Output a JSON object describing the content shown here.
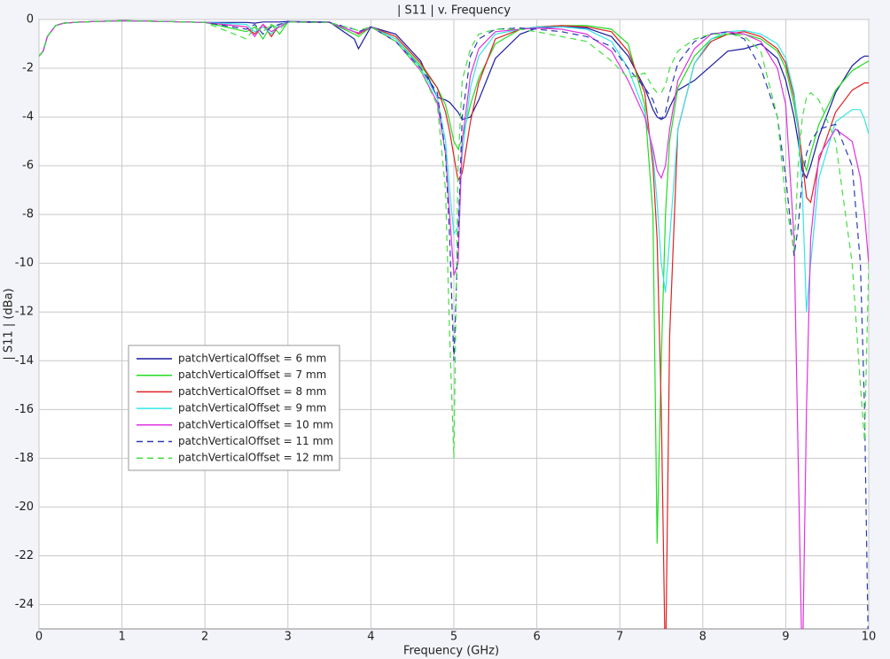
{
  "chart_data": {
    "type": "line",
    "title": "| S11 | v. Frequency",
    "xlabel": "Frequency (GHz)",
    "ylabel": "| S11 | (dBa)",
    "xlim": [
      0,
      10
    ],
    "ylim": [
      -25,
      0
    ],
    "xticks": [
      0,
      1,
      2,
      3,
      4,
      5,
      6,
      7,
      8,
      9,
      10
    ],
    "yticks": [
      0,
      -2,
      -4,
      -6,
      -8,
      -10,
      -12,
      -14,
      -16,
      -18,
      -20,
      -22,
      -24
    ],
    "grid": true,
    "x": [
      0,
      0.05,
      0.1,
      0.2,
      0.3,
      0.5,
      1,
      1.5,
      2,
      2.5,
      2.6,
      2.7,
      2.8,
      2.9,
      3,
      3.5,
      3.8,
      3.85,
      4,
      4.3,
      4.6,
      4.8,
      4.9,
      4.95,
      5,
      5.05,
      5.1,
      5.2,
      5.3,
      5.5,
      5.8,
      6,
      6.3,
      6.6,
      6.9,
      7.1,
      7.3,
      7.4,
      7.45,
      7.5,
      7.55,
      7.6,
      7.7,
      7.9,
      8.1,
      8.3,
      8.5,
      8.7,
      8.9,
      9.0,
      9.1,
      9.15,
      9.2,
      9.25,
      9.3,
      9.4,
      9.6,
      9.8,
      9.9,
      9.95,
      10
    ],
    "series": [
      {
        "name": "patchVerticalOffset = 6 mm",
        "color": "#1a1aa0",
        "linestyle": "solid",
        "values": [
          -1.5,
          -1.3,
          -0.7,
          -0.25,
          -0.15,
          -0.1,
          -0.05,
          -0.08,
          -0.12,
          -0.12,
          -0.15,
          -0.1,
          -0.1,
          -0.1,
          -0.08,
          -0.1,
          -0.8,
          -1.2,
          -0.3,
          -0.6,
          -1.7,
          -3.2,
          -3.3,
          -3.4,
          -3.6,
          -3.8,
          -4.1,
          -4.0,
          -3.3,
          -1.6,
          -0.6,
          -0.35,
          -0.3,
          -0.35,
          -0.7,
          -1.5,
          -2.8,
          -3.7,
          -4.0,
          -4.1,
          -4.0,
          -3.6,
          -2.9,
          -2.5,
          -1.9,
          -1.3,
          -1.2,
          -1.0,
          -1.6,
          -2.5,
          -4.0,
          -5.0,
          -6.2,
          -6.5,
          -6.0,
          -4.8,
          -3.0,
          -1.9,
          -1.6,
          -1.5,
          -1.5
        ]
      },
      {
        "name": "patchVerticalOffset = 7 mm",
        "color": "#22dd22",
        "linestyle": "solid",
        "values": [
          -1.5,
          -1.3,
          -0.7,
          -0.25,
          -0.15,
          -0.1,
          -0.05,
          -0.08,
          -0.12,
          -0.5,
          -0.3,
          -0.8,
          -0.2,
          -0.6,
          -0.1,
          -0.12,
          -0.6,
          -0.7,
          -0.3,
          -0.8,
          -1.9,
          -2.8,
          -3.5,
          -4.2,
          -5.0,
          -5.3,
          -4.9,
          -3.5,
          -2.4,
          -1.0,
          -0.4,
          -0.3,
          -0.25,
          -0.25,
          -0.4,
          -1.0,
          -3.5,
          -8,
          -21.5,
          -14,
          -8,
          -5,
          -2.8,
          -1.5,
          -0.8,
          -0.6,
          -0.6,
          -0.8,
          -1.3,
          -2.0,
          -3.5,
          -4.5,
          -5.7,
          -6.2,
          -5.5,
          -4.3,
          -2.9,
          -2.1,
          -1.9,
          -1.8,
          -1.7
        ]
      },
      {
        "name": "patchVerticalOffset = 8 mm",
        "color": "#dd2222",
        "linestyle": "solid",
        "values": [
          -1.5,
          -1.3,
          -0.7,
          -0.25,
          -0.15,
          -0.1,
          -0.05,
          -0.08,
          -0.12,
          -0.3,
          -0.6,
          -0.2,
          -0.7,
          -0.2,
          -0.1,
          -0.12,
          -0.5,
          -0.6,
          -0.3,
          -0.7,
          -1.8,
          -2.8,
          -3.8,
          -4.6,
          -5.6,
          -6.6,
          -6.3,
          -4.2,
          -2.6,
          -0.8,
          -0.4,
          -0.3,
          -0.25,
          -0.3,
          -0.5,
          -1.3,
          -3.0,
          -6,
          -9,
          -16,
          -27,
          -13,
          -4.5,
          -1.8,
          -0.9,
          -0.6,
          -0.5,
          -0.7,
          -1.2,
          -1.8,
          -3.2,
          -4.3,
          -5.8,
          -7.3,
          -7.5,
          -5.8,
          -3.8,
          -2.9,
          -2.7,
          -2.6,
          -2.6
        ]
      },
      {
        "name": "patchVerticalOffset = 9 mm",
        "color": "#33e6e6",
        "linestyle": "solid",
        "values": [
          -1.5,
          -1.3,
          -0.7,
          -0.25,
          -0.15,
          -0.1,
          -0.05,
          -0.08,
          -0.12,
          -0.2,
          -0.5,
          -0.3,
          -0.6,
          -0.2,
          -0.1,
          -0.12,
          -0.5,
          -0.55,
          -0.3,
          -0.8,
          -2.0,
          -3.2,
          -5,
          -7,
          -8.8,
          -8.5,
          -5.5,
          -2.8,
          -1.5,
          -0.6,
          -0.4,
          -0.3,
          -0.3,
          -0.4,
          -0.9,
          -2.0,
          -3.8,
          -5.5,
          -7.5,
          -10,
          -11.2,
          -9,
          -4.5,
          -1.8,
          -0.8,
          -0.5,
          -0.45,
          -0.6,
          -1.0,
          -1.6,
          -3.0,
          -4.5,
          -7,
          -12,
          -10,
          -6.5,
          -4.2,
          -3.7,
          -3.7,
          -4.1,
          -4.7
        ]
      },
      {
        "name": "patchVerticalOffset = 10 mm",
        "color": "#e033e0",
        "linestyle": "solid",
        "values": [
          -1.5,
          -1.3,
          -0.7,
          -0.25,
          -0.15,
          -0.1,
          -0.05,
          -0.08,
          -0.12,
          -0.3,
          -0.7,
          -0.2,
          -0.5,
          -0.3,
          -0.1,
          -0.12,
          -0.5,
          -0.55,
          -0.3,
          -0.9,
          -2.1,
          -3.4,
          -5.5,
          -8,
          -10.5,
          -10,
          -5,
          -2.3,
          -1.2,
          -0.5,
          -0.4,
          -0.35,
          -0.4,
          -0.6,
          -1.3,
          -2.5,
          -4.0,
          -5.3,
          -6.2,
          -6.5,
          -6.0,
          -4.5,
          -2.5,
          -1.2,
          -0.6,
          -0.5,
          -0.6,
          -0.9,
          -2.0,
          -3.5,
          -9,
          -18,
          -27,
          -16,
          -9,
          -5.6,
          -4.5,
          -5,
          -6.5,
          -8,
          -10
        ]
      },
      {
        "name": "patchVerticalOffset = 11 mm",
        "color": "#2a3ab0",
        "linestyle": "dashed",
        "values": [
          -1.5,
          -1.3,
          -0.7,
          -0.25,
          -0.15,
          -0.1,
          -0.05,
          -0.08,
          -0.12,
          -0.4,
          -0.2,
          -0.6,
          -0.3,
          -0.2,
          -0.1,
          -0.12,
          -0.4,
          -0.5,
          -0.3,
          -0.9,
          -2.0,
          -3,
          -5.5,
          -9,
          -14,
          -9,
          -4,
          -1.5,
          -0.8,
          -0.4,
          -0.35,
          -0.4,
          -0.5,
          -0.7,
          -1.1,
          -2.0,
          -2.8,
          -3.3,
          -3.8,
          -4.1,
          -3.8,
          -3.0,
          -1.8,
          -0.9,
          -0.6,
          -0.5,
          -0.8,
          -2.0,
          -4.0,
          -6.5,
          -9.7,
          -8.5,
          -6.5,
          -5.5,
          -5.0,
          -4.5,
          -4.3,
          -6,
          -10,
          -16,
          -27
        ]
      },
      {
        "name": "patchVerticalOffset = 12 mm",
        "color": "#44dd44",
        "linestyle": "dashed",
        "values": [
          -1.5,
          -1.3,
          -0.7,
          -0.25,
          -0.15,
          -0.1,
          -0.05,
          -0.08,
          -0.12,
          -0.8,
          -0.3,
          -0.5,
          -0.2,
          -0.4,
          -0.1,
          -0.12,
          -0.4,
          -0.45,
          -0.3,
          -0.9,
          -2.1,
          -3.5,
          -7,
          -13,
          -18,
          -6,
          -2.5,
          -1.2,
          -0.6,
          -0.4,
          -0.4,
          -0.5,
          -0.7,
          -0.9,
          -1.7,
          -2.4,
          -2.2,
          -2.8,
          -3.0,
          -3.0,
          -2.7,
          -2.0,
          -1.3,
          -0.8,
          -0.6,
          -0.6,
          -0.7,
          -1.3,
          -4,
          -7.5,
          -9.5,
          -6,
          -4,
          -3.2,
          -3.0,
          -3.3,
          -5,
          -10,
          -15,
          -17.3,
          -10
        ]
      }
    ]
  }
}
